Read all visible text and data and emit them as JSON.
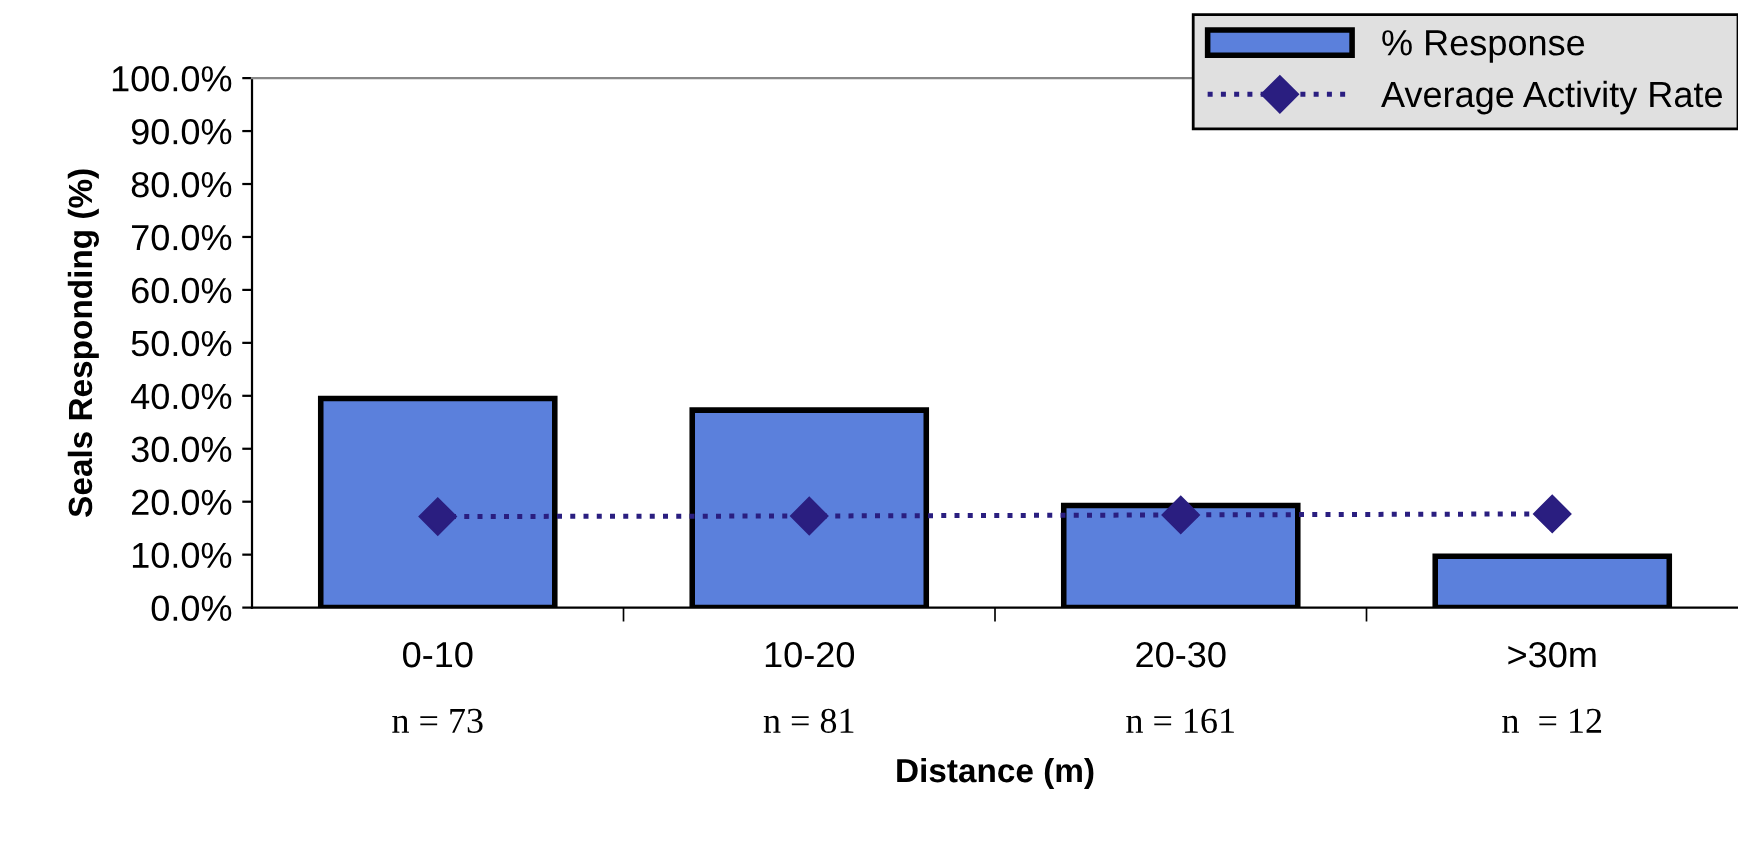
{
  "chart_data": {
    "type": "bar",
    "xlabel": "Distance (m)",
    "ylabel": "Seals Responding (%)",
    "categories": [
      "0-10",
      "10-20",
      "20-30",
      ">30m"
    ],
    "series": [
      {
        "name": "% Response",
        "color": "#5b80dc",
        "values": [
          39.5,
          37.3,
          19.3,
          9.7
        ]
      },
      {
        "name": "Average Activity Rate",
        "type": "line",
        "color": "#2a1e80",
        "values": [
          17.2,
          17.3,
          17.5,
          17.7
        ],
        "marker": "diamond",
        "line_style": "dotted"
      }
    ],
    "ylim": [
      0,
      100
    ],
    "yticks": [
      {
        "value": 0,
        "label": "0.0%"
      },
      {
        "value": 10,
        "label": "10.0%"
      },
      {
        "value": 20,
        "label": "20.0%"
      },
      {
        "value": 30,
        "label": "30.0%"
      },
      {
        "value": 40,
        "label": "40.0%"
      },
      {
        "value": 50,
        "label": "50.0%"
      },
      {
        "value": 60,
        "label": "60.0%"
      },
      {
        "value": 70,
        "label": "70.0%"
      },
      {
        "value": 80,
        "label": "80.0%"
      },
      {
        "value": 90,
        "label": "90.0%"
      },
      {
        "value": 100,
        "label": "100.0%"
      }
    ],
    "annotations": [
      "n = 73",
      "n = 81",
      "n = 161",
      "n  = 12"
    ],
    "grid": false,
    "legend": "top right"
  }
}
